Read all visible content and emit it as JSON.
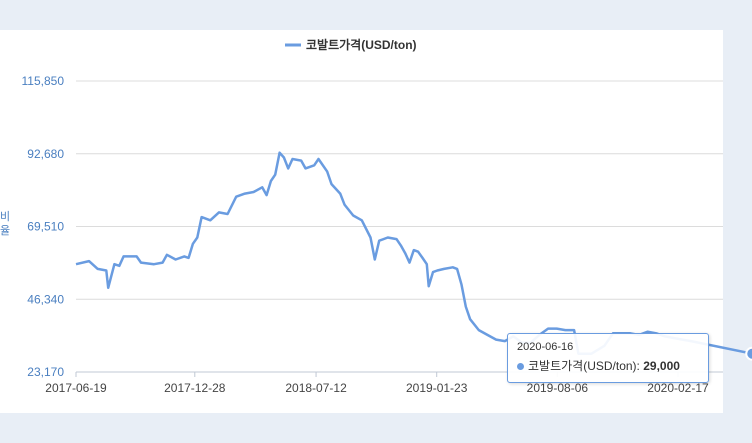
{
  "chart_data": {
    "type": "line",
    "title": "",
    "xlabel": "",
    "ylabel": "비율",
    "ylim": [
      23170,
      115850
    ],
    "y_ticks": [
      "115,850",
      "92,680",
      "69,510",
      "46,340",
      "23,170"
    ],
    "x_ticks": [
      "2017-06-19",
      "2017-12-28",
      "2018-07-12",
      "2019-01-23",
      "2019-08-06",
      "2020-02-17"
    ],
    "legend_position": "top-center",
    "grid": true,
    "series": [
      {
        "name": "코발트가격(USD/ton)",
        "color": "#6a9ce0",
        "points": [
          [
            "2017-06-19",
            57500
          ],
          [
            "2017-07-10",
            58500
          ],
          [
            "2017-07-24",
            56000
          ],
          [
            "2017-08-07",
            55500
          ],
          [
            "2017-08-10",
            50000
          ],
          [
            "2017-08-20",
            57500
          ],
          [
            "2017-08-28",
            57000
          ],
          [
            "2017-09-04",
            60000
          ],
          [
            "2017-09-25",
            60000
          ],
          [
            "2017-10-02",
            58000
          ],
          [
            "2017-10-23",
            57500
          ],
          [
            "2017-11-06",
            58000
          ],
          [
            "2017-11-13",
            60500
          ],
          [
            "2017-11-27",
            59000
          ],
          [
            "2017-12-11",
            60000
          ],
          [
            "2017-12-18",
            59500
          ],
          [
            "2017-12-25",
            64000
          ],
          [
            "2018-01-01",
            66000
          ],
          [
            "2018-01-08",
            72500
          ],
          [
            "2018-01-22",
            71500
          ],
          [
            "2018-02-05",
            74000
          ],
          [
            "2018-02-19",
            73500
          ],
          [
            "2018-03-05",
            79000
          ],
          [
            "2018-03-19",
            80000
          ],
          [
            "2018-04-02",
            80500
          ],
          [
            "2018-04-16",
            82000
          ],
          [
            "2018-04-23",
            79500
          ],
          [
            "2018-04-30",
            84000
          ],
          [
            "2018-05-07",
            86000
          ],
          [
            "2018-05-14",
            93000
          ],
          [
            "2018-05-21",
            91500
          ],
          [
            "2018-05-28",
            88000
          ],
          [
            "2018-06-04",
            91000
          ],
          [
            "2018-06-18",
            90500
          ],
          [
            "2018-06-25",
            88000
          ],
          [
            "2018-07-09",
            89000
          ],
          [
            "2018-07-16",
            91000
          ],
          [
            "2018-07-30",
            87000
          ],
          [
            "2018-08-06",
            83000
          ],
          [
            "2018-08-20",
            80000
          ],
          [
            "2018-08-27",
            76500
          ],
          [
            "2018-09-10",
            73000
          ],
          [
            "2018-09-24",
            71500
          ],
          [
            "2018-10-08",
            66000
          ],
          [
            "2018-10-15",
            59000
          ],
          [
            "2018-10-22",
            65000
          ],
          [
            "2018-11-05",
            66000
          ],
          [
            "2018-11-19",
            65500
          ],
          [
            "2018-11-26",
            63500
          ],
          [
            "2018-12-03",
            61000
          ],
          [
            "2018-12-10",
            58000
          ],
          [
            "2018-12-17",
            62000
          ],
          [
            "2018-12-24",
            61500
          ],
          [
            "2018-12-31",
            59500
          ],
          [
            "2019-01-07",
            57500
          ],
          [
            "2019-01-10",
            50500
          ],
          [
            "2019-01-17",
            55000
          ],
          [
            "2019-01-24",
            55500
          ],
          [
            "2019-02-04",
            56000
          ],
          [
            "2019-02-18",
            56500
          ],
          [
            "2019-02-25",
            56000
          ],
          [
            "2019-03-04",
            51000
          ],
          [
            "2019-03-11",
            44000
          ],
          [
            "2019-03-18",
            40000
          ],
          [
            "2019-04-01",
            36500
          ],
          [
            "2019-04-15",
            35000
          ],
          [
            "2019-04-29",
            33500
          ],
          [
            "2019-05-13",
            33000
          ],
          [
            "2019-05-27",
            34500
          ],
          [
            "2019-06-10",
            32500
          ],
          [
            "2019-06-24",
            32500
          ],
          [
            "2019-07-08",
            35000
          ],
          [
            "2019-07-22",
            37000
          ],
          [
            "2019-08-05",
            37000
          ],
          [
            "2019-08-19",
            36500
          ],
          [
            "2019-09-02",
            36500
          ],
          [
            "2019-09-09",
            29000
          ],
          [
            "2019-09-30",
            29000
          ],
          [
            "2019-10-21",
            31500
          ],
          [
            "2019-11-04",
            35500
          ],
          [
            "2019-11-18",
            35500
          ],
          [
            "2019-12-02",
            35500
          ],
          [
            "2019-12-16",
            35000
          ],
          [
            "2019-12-30",
            36000
          ],
          [
            "2020-01-13",
            35500
          ],
          [
            "2020-01-27",
            34500
          ],
          [
            "2020-02-10",
            34000
          ],
          [
            "2020-02-24",
            33500
          ],
          [
            "2020-03-09",
            33000
          ],
          [
            "2020-06-16",
            29000
          ]
        ]
      }
    ]
  },
  "tooltip": {
    "date": "2020-06-16",
    "series_label": "코발트가격(USD/ton):",
    "value": "29,000"
  }
}
